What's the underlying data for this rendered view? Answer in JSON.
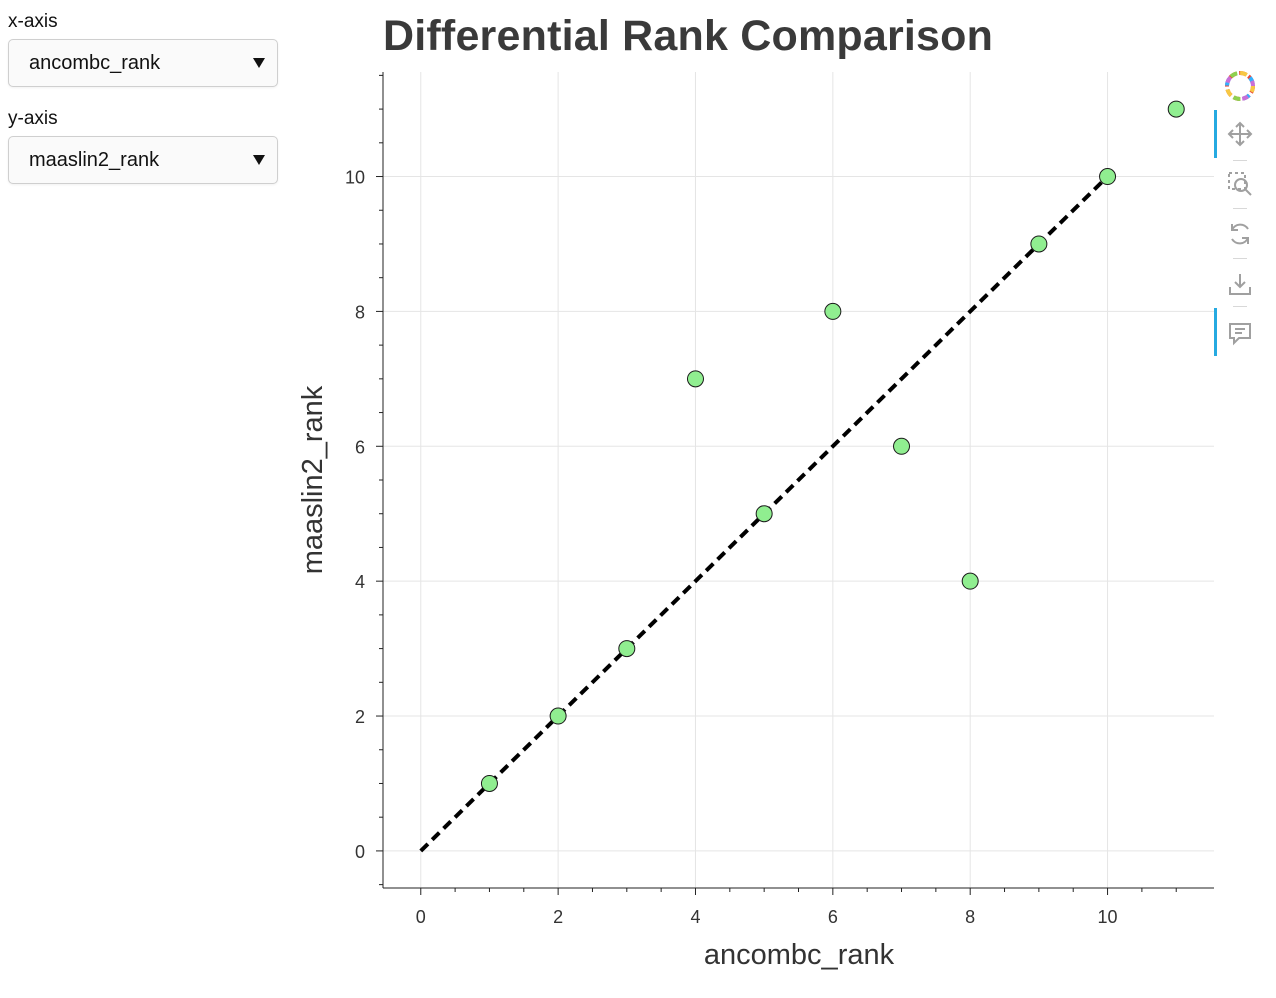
{
  "controls": {
    "x_axis": {
      "label": "x-axis",
      "selected": "ancombc_rank"
    },
    "y_axis": {
      "label": "y-axis",
      "selected": "maaslin2_rank"
    }
  },
  "toolbar": {
    "tools": [
      "bokeh-logo-icon",
      "pan-icon",
      "box-zoom-icon",
      "reset-icon",
      "save-icon",
      "hover-icon"
    ],
    "active_color": "#26aae1"
  },
  "chart_data": {
    "type": "scatter",
    "title": "Differential Rank Comparison",
    "xlabel": "ancombc_rank",
    "ylabel": "maaslin2_rank",
    "xlim": [
      -0.55,
      11.55
    ],
    "ylim": [
      -0.55,
      11.55
    ],
    "x_ticks": [
      0,
      2,
      4,
      6,
      8,
      10
    ],
    "y_ticks": [
      0,
      2,
      4,
      6,
      8,
      10
    ],
    "grid": true,
    "points": [
      {
        "x": 1,
        "y": 1
      },
      {
        "x": 2,
        "y": 2
      },
      {
        "x": 3,
        "y": 3
      },
      {
        "x": 4,
        "y": 7
      },
      {
        "x": 5,
        "y": 5
      },
      {
        "x": 6,
        "y": 8
      },
      {
        "x": 7,
        "y": 6
      },
      {
        "x": 8,
        "y": 4
      },
      {
        "x": 9,
        "y": 9
      },
      {
        "x": 10,
        "y": 10
      },
      {
        "x": 11,
        "y": 11
      }
    ],
    "reference_line": {
      "x": [
        0,
        10
      ],
      "y": [
        0,
        10
      ],
      "style": "dashed",
      "color": "#000000"
    },
    "marker_fill": "#90ee90",
    "marker_stroke": "#1a1a1a",
    "grid_color": "#e5e5e5"
  }
}
